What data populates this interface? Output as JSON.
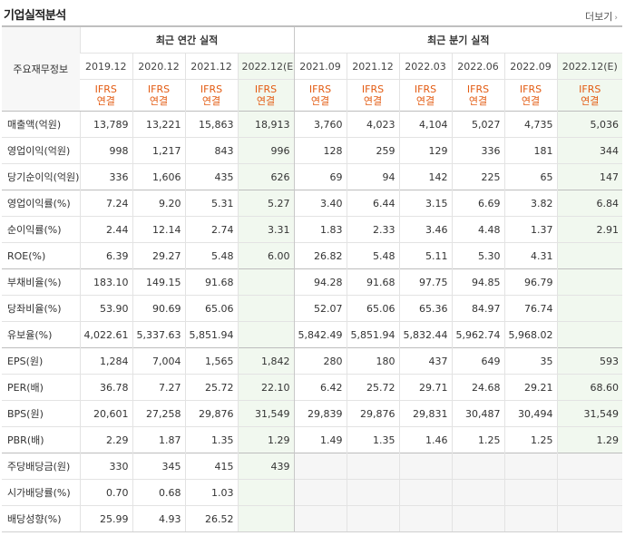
{
  "header": {
    "title": "기업실적분석",
    "more_label": "더보기"
  },
  "table": {
    "item_header": "주요재무정보",
    "annual_group": "최근 연간 실적",
    "quarter_group": "최근 분기 실적",
    "annual_dates": [
      "2019.12",
      "2020.12",
      "2021.12",
      "2022.12(E)"
    ],
    "quarter_dates": [
      "2021.09",
      "2021.12",
      "2022.03",
      "2022.06",
      "2022.09",
      "2022.12(E)"
    ],
    "ifrs_top": "IFRS",
    "ifrs_bottom": "연결",
    "rows": [
      {
        "label": "매출액(억원)",
        "values": [
          "13,789",
          "13,221",
          "15,863",
          "18,913",
          "3,760",
          "4,023",
          "4,104",
          "5,027",
          "4,735",
          "5,036"
        ]
      },
      {
        "label": "영업이익(억원)",
        "values": [
          "998",
          "1,217",
          "843",
          "996",
          "128",
          "259",
          "129",
          "336",
          "181",
          "344"
        ]
      },
      {
        "label": "당기순이익(억원)",
        "values": [
          "336",
          "1,606",
          "435",
          "626",
          "69",
          "94",
          "142",
          "225",
          "65",
          "147"
        ]
      },
      {
        "label": "영업이익률(%)",
        "values": [
          "7.24",
          "9.20",
          "5.31",
          "5.27",
          "3.40",
          "6.44",
          "3.15",
          "6.69",
          "3.82",
          "6.84"
        ]
      },
      {
        "label": "순이익률(%)",
        "values": [
          "2.44",
          "12.14",
          "2.74",
          "3.31",
          "1.83",
          "2.33",
          "3.46",
          "4.48",
          "1.37",
          "2.91"
        ]
      },
      {
        "label": "ROE(%)",
        "values": [
          "6.39",
          "29.27",
          "5.48",
          "6.00",
          "26.82",
          "5.48",
          "5.11",
          "5.30",
          "4.31",
          ""
        ]
      },
      {
        "label": "부채비율(%)",
        "values": [
          "183.10",
          "149.15",
          "91.68",
          "",
          "94.28",
          "91.68",
          "97.75",
          "94.85",
          "96.79",
          ""
        ]
      },
      {
        "label": "당좌비율(%)",
        "values": [
          "53.90",
          "90.69",
          "65.06",
          "",
          "52.07",
          "65.06",
          "65.36",
          "84.97",
          "76.74",
          ""
        ]
      },
      {
        "label": "유보율(%)",
        "values": [
          "4,022.61",
          "5,337.63",
          "5,851.94",
          "",
          "5,842.49",
          "5,851.94",
          "5,832.44",
          "5,962.74",
          "5,968.02",
          ""
        ]
      },
      {
        "label": "EPS(원)",
        "values": [
          "1,284",
          "7,004",
          "1,565",
          "1,842",
          "280",
          "180",
          "437",
          "649",
          "35",
          "593"
        ]
      },
      {
        "label": "PER(배)",
        "values": [
          "36.78",
          "7.27",
          "25.72",
          "22.10",
          "6.42",
          "25.72",
          "29.71",
          "24.68",
          "29.21",
          "68.60"
        ]
      },
      {
        "label": "BPS(원)",
        "values": [
          "20,601",
          "27,258",
          "29,876",
          "31,549",
          "29,839",
          "29,876",
          "29,831",
          "30,487",
          "30,494",
          "31,549"
        ]
      },
      {
        "label": "PBR(배)",
        "values": [
          "2.29",
          "1.87",
          "1.35",
          "1.29",
          "1.49",
          "1.35",
          "1.46",
          "1.25",
          "1.25",
          "1.29"
        ]
      },
      {
        "label": "주당배당금(원)",
        "values": [
          "330",
          "345",
          "415",
          "439",
          "",
          "",
          "",
          "",
          "",
          ""
        ]
      },
      {
        "label": "시가배당률(%)",
        "values": [
          "0.70",
          "0.68",
          "1.03",
          "",
          "",
          "",
          "",
          "",
          "",
          ""
        ]
      },
      {
        "label": "배당성향(%)",
        "values": [
          "25.99",
          "4.93",
          "26.52",
          "",
          "",
          "",
          "",
          "",
          "",
          ""
        ]
      }
    ]
  }
}
